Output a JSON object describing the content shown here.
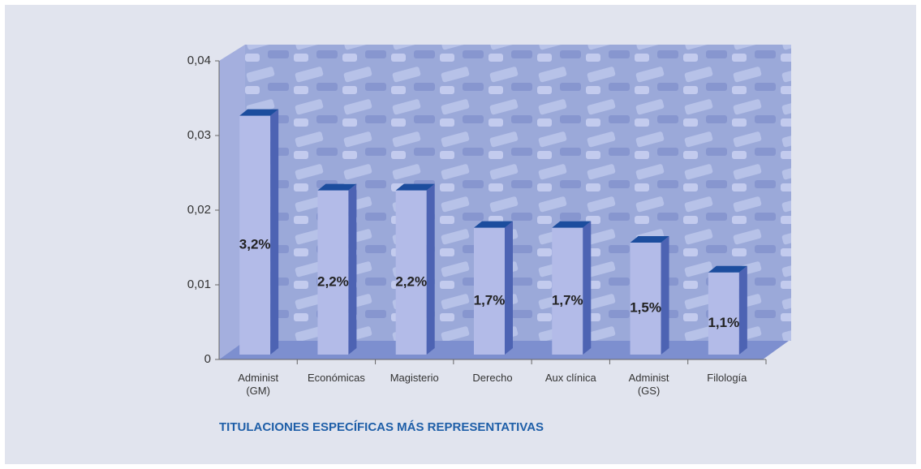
{
  "chart_data": {
    "type": "bar",
    "title": "TITULACIONES ESPECÍFICAS MÁS REPRESENTATIVAS",
    "categories": [
      "Administ\n(GM)",
      "Económicas",
      "Magisterio",
      "Derecho",
      "Aux clínica",
      "Administ\n(GS)",
      "Filología"
    ],
    "values": [
      0.032,
      0.022,
      0.022,
      0.017,
      0.017,
      0.015,
      0.011
    ],
    "value_labels": [
      "3,2%",
      "2,2%",
      "2,2%",
      "1,7%",
      "1,7%",
      "1,5%",
      "1,1%"
    ],
    "color": "#b3bbe8",
    "ylim": [
      0,
      0.04
    ],
    "yticks": [
      0,
      {
        "value": 0.01,
        "label": "0,01"
      },
      {
        "value": 0.02,
        "label": "0,02"
      },
      {
        "value": 0.03,
        "label": "0,03"
      },
      {
        "value": 0.04,
        "label": "0,04"
      }
    ]
  }
}
